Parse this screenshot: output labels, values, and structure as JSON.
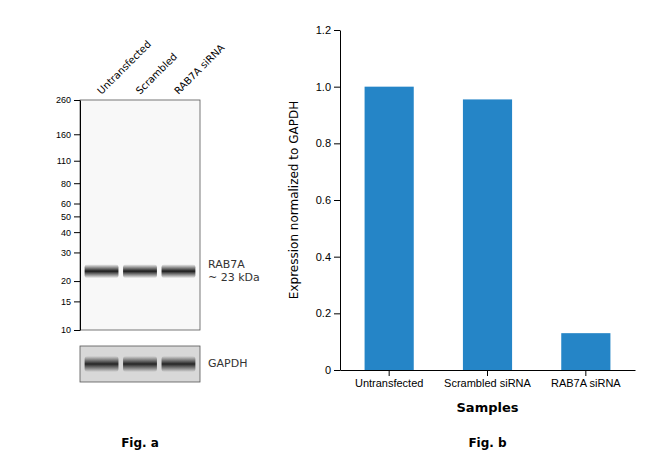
{
  "chart_data": [
    {
      "type": "blot",
      "title": "Fig. a",
      "categories": [
        "Untransfected",
        "Scrambled",
        "RAB7A siRNA"
      ],
      "log": "y",
      "ylim": [
        10,
        260
      ],
      "yticks": [
        260,
        160,
        110,
        80,
        60,
        50,
        40,
        30,
        20,
        15,
        10
      ],
      "series": [
        {
          "name": "RAB7A\n~ 23 kDa",
          "color": "#111111",
          "values": [
            23,
            23,
            23
          ]
        }
      ],
      "annotations": [
        "GAPDH"
      ]
    },
    {
      "type": "bar",
      "title": "Fig. b",
      "categories": [
        "Untransfected",
        "Scrambled siRNA",
        "RAB7A siRNA"
      ],
      "values": [
        1.0,
        0.955,
        0.13
      ],
      "color": "#2585c7",
      "xlabel": "Samples",
      "ylabel": "Expression normalized to GAPDH",
      "ylim": [
        0,
        1.2
      ],
      "yticks": [
        0,
        0.2,
        0.4,
        0.6,
        {
          "value": 0.8,
          "label": "0.8"
        },
        {
          "value": 1.0,
          "label": "1.0"
        },
        1.2
      ],
      "grid": false
    }
  ]
}
